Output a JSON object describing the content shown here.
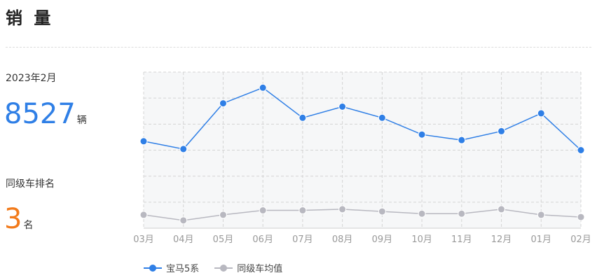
{
  "header": {
    "title": "销 量"
  },
  "summary": {
    "period": "2023年2月",
    "sales_value": "8527",
    "sales_unit": "辆",
    "rank_label": "同级车排名",
    "rank_value": "3",
    "rank_unit": "名"
  },
  "legend": {
    "items": [
      {
        "label": "宝马5系"
      },
      {
        "label": "同级车均值"
      }
    ]
  },
  "colors": {
    "primary": "#2f7fe6",
    "average": "#b8b8c0",
    "rank": "#f27a1a",
    "plot_bg": "#f6f7f8",
    "grid": "#d4d4d4"
  },
  "chart_data": {
    "type": "line",
    "categories": [
      "03月",
      "04月",
      "05月",
      "06月",
      "07月",
      "08月",
      "09月",
      "10月",
      "11月",
      "12月",
      "01月",
      "02月"
    ],
    "series": [
      {
        "name": "宝马5系",
        "color": "#2f7fe6",
        "values": [
          8900,
          8550,
          10600,
          11300,
          9950,
          10450,
          9950,
          9200,
          8950,
          9350,
          10150,
          8500
        ]
      },
      {
        "name": "同级车均值",
        "color": "#b8b8c0",
        "values": [
          5600,
          5350,
          5600,
          5800,
          5800,
          5850,
          5750,
          5650,
          5650,
          5850,
          5600,
          5500
        ]
      }
    ],
    "ylim": [
      5000,
      12000
    ],
    "grid": true,
    "legend_position": "bottom-left"
  }
}
